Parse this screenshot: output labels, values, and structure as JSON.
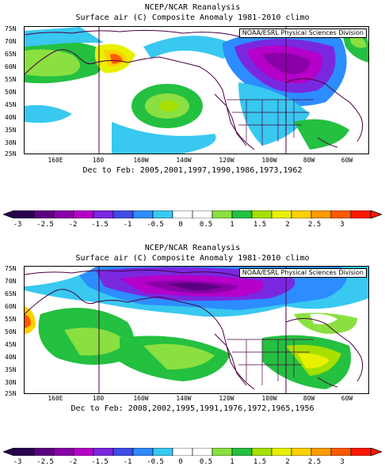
{
  "maps": [
    {
      "title_line1": "NCEP/NCAR Reanalysis",
      "title_line2": "Surface air (C) Composite Anomaly 1981-2010 climo",
      "attribution": "NOAA/ESRL Physical Sciences Division",
      "caption": "Dec to Feb: 2005,2001,1997,1990,1986,1973,1962"
    },
    {
      "title_line1": "NCEP/NCAR Reanalysis",
      "title_line2": "Surface air (C) Composite Anomaly 1981-2010 climo",
      "attribution": "NOAA/ESRL Physical Sciences Division",
      "caption": "Dec to Feb: 2008,2002,1995,1991,1976,1972,1965,1956"
    }
  ],
  "lat_labels": [
    "75N",
    "70N",
    "65N",
    "60N",
    "55N",
    "50N",
    "45N",
    "40N",
    "35N",
    "30N",
    "25N"
  ],
  "lon_labels": [
    "160E",
    "180",
    "160W",
    "140W",
    "120W",
    "100W",
    "80W",
    "60W"
  ],
  "colorbar": {
    "tick_labels": [
      "-3",
      "-2.5",
      "-2",
      "-1.5",
      "-1",
      "-0.5",
      "0",
      "0.5",
      "1",
      "1.5",
      "2",
      "2.5",
      "3"
    ],
    "colors": [
      "#2a0050",
      "#5b0080",
      "#8a00a8",
      "#b400c8",
      "#7a28e0",
      "#3f4ce6",
      "#2d8cff",
      "#38c8f0",
      "#ffffff",
      "#ffffff",
      "#8ae040",
      "#24c040",
      "#a6e000",
      "#e8f000",
      "#ffd000",
      "#ff9a00",
      "#ff5a00",
      "#ff1800"
    ]
  }
}
